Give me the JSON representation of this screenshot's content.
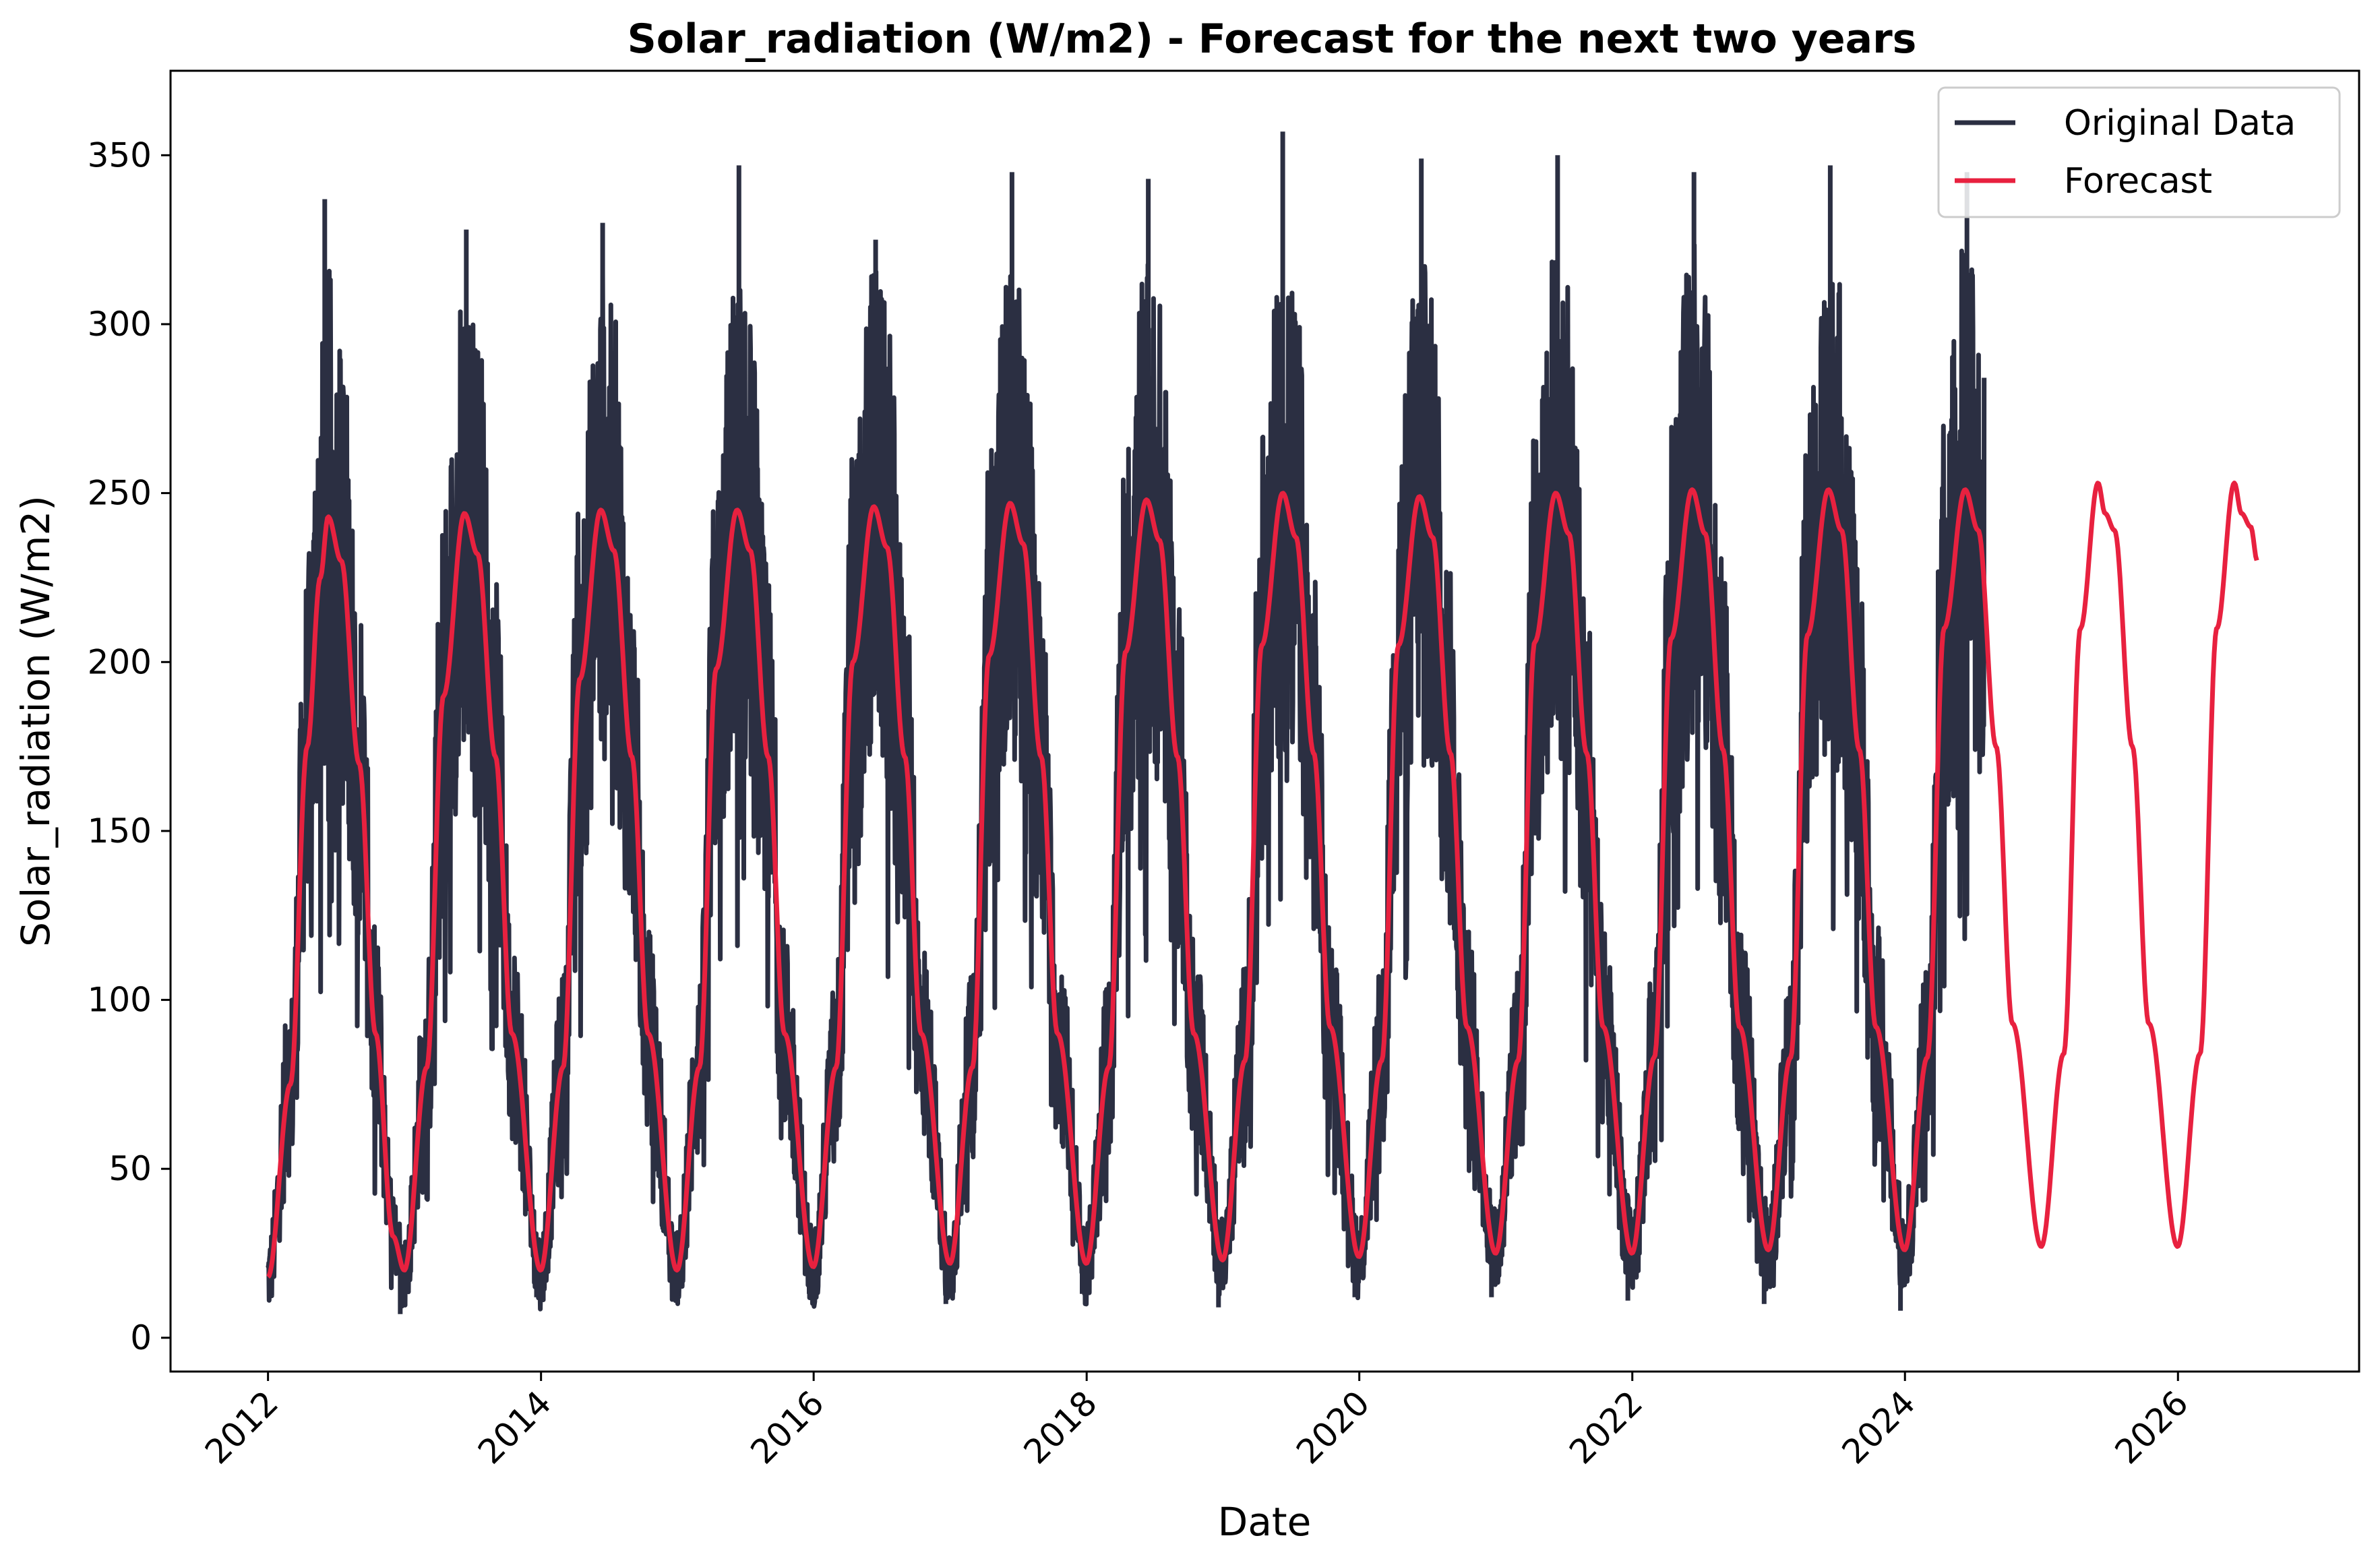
{
  "chart_data": {
    "type": "line",
    "title": "Solar_radiation (W/m2) - Forecast for the next two years",
    "xlabel": "Date",
    "ylabel": "Solar_radiation (W/m2)",
    "xlim": [
      "2011-04-15",
      "2027-05-01"
    ],
    "ylim": [
      -10,
      375
    ],
    "x_ticks": [
      "2012",
      "2014",
      "2016",
      "2018",
      "2020",
      "2022",
      "2024",
      "2026"
    ],
    "y_ticks": [
      "0",
      "50",
      "100",
      "150",
      "200",
      "250",
      "300",
      "350"
    ],
    "legend_position": "top-right",
    "grid": false,
    "series": [
      {
        "name": "Original Data",
        "color": "#2b2f42",
        "style": "noisy daily observations",
        "x_range": [
          "2012-01-01",
          "2024-07-31"
        ],
        "monthly_mean_points": [
          [
            "2012-01-15",
            25
          ],
          [
            "2012-04-15",
            175
          ],
          [
            "2012-06-15",
            240
          ],
          [
            "2012-09-15",
            165
          ],
          [
            "2012-12-15",
            25
          ],
          [
            "2013-06-15",
            240
          ],
          [
            "2013-12-15",
            22
          ],
          [
            "2014-06-15",
            242
          ],
          [
            "2014-12-15",
            22
          ],
          [
            "2015-06-15",
            244
          ],
          [
            "2015-12-15",
            23
          ],
          [
            "2016-06-15",
            245
          ],
          [
            "2016-12-15",
            23
          ],
          [
            "2017-06-15",
            246
          ],
          [
            "2017-12-15",
            24
          ],
          [
            "2018-06-15",
            247
          ],
          [
            "2018-12-15",
            25
          ],
          [
            "2019-06-15",
            249
          ],
          [
            "2019-12-15",
            25
          ],
          [
            "2020-06-15",
            248
          ],
          [
            "2020-12-15",
            26
          ],
          [
            "2021-06-15",
            249
          ],
          [
            "2021-12-15",
            26
          ],
          [
            "2022-06-15",
            250
          ],
          [
            "2022-12-15",
            27
          ],
          [
            "2023-06-15",
            250
          ],
          [
            "2023-12-15",
            27
          ],
          [
            "2024-06-15",
            250
          ]
        ],
        "annual_peaks": [
          [
            "2012-06-01",
            337
          ],
          [
            "2013-06-15",
            328
          ],
          [
            "2014-06-15",
            330
          ],
          [
            "2015-06-15",
            347
          ],
          [
            "2016-06-15",
            325
          ],
          [
            "2017-06-15",
            345
          ],
          [
            "2018-06-15",
            343
          ],
          [
            "2019-06-10",
            357
          ],
          [
            "2020-06-15",
            349
          ],
          [
            "2021-06-15",
            350
          ],
          [
            "2022-06-15",
            345
          ],
          [
            "2023-06-15",
            347
          ],
          [
            "2024-06-15",
            345
          ]
        ],
        "annual_minima": [
          [
            "2012-12-20",
            7
          ],
          [
            "2013-12-20",
            12
          ],
          [
            "2014-12-20",
            12
          ],
          [
            "2015-12-20",
            13
          ],
          [
            "2016-12-20",
            10
          ],
          [
            "2017-12-20",
            13
          ],
          [
            "2018-12-20",
            9
          ],
          [
            "2019-12-20",
            12
          ],
          [
            "2020-12-20",
            12
          ],
          [
            "2021-12-20",
            11
          ],
          [
            "2022-12-20",
            10
          ],
          [
            "2023-12-20",
            8
          ]
        ]
      },
      {
        "name": "Forecast",
        "color": "#e8213f",
        "style": "smooth line",
        "points": [
          [
            "2012-01-01",
            18
          ],
          [
            "2012-03-01",
            75
          ],
          [
            "2012-04-15",
            175
          ],
          [
            "2012-05-20",
            225
          ],
          [
            "2012-06-10",
            243
          ],
          [
            "2012-07-15",
            230
          ],
          [
            "2012-09-01",
            170
          ],
          [
            "2012-10-15",
            90
          ],
          [
            "2012-12-01",
            30
          ],
          [
            "2012-12-31",
            20
          ],
          [
            "2013-03-01",
            80
          ],
          [
            "2013-04-15",
            190
          ],
          [
            "2013-06-10",
            244
          ],
          [
            "2013-07-15",
            232
          ],
          [
            "2013-09-01",
            172
          ],
          [
            "2013-10-15",
            90
          ],
          [
            "2013-12-31",
            20
          ],
          [
            "2014-03-01",
            80
          ],
          [
            "2014-04-15",
            195
          ],
          [
            "2014-06-10",
            245
          ],
          [
            "2014-07-15",
            233
          ],
          [
            "2014-09-01",
            172
          ],
          [
            "2014-10-15",
            90
          ],
          [
            "2014-12-31",
            20
          ],
          [
            "2015-03-01",
            80
          ],
          [
            "2015-04-15",
            198
          ],
          [
            "2015-06-10",
            245
          ],
          [
            "2015-07-15",
            233
          ],
          [
            "2015-09-01",
            172
          ],
          [
            "2015-10-15",
            90
          ],
          [
            "2015-12-31",
            21
          ],
          [
            "2016-03-01",
            80
          ],
          [
            "2016-04-15",
            200
          ],
          [
            "2016-06-10",
            246
          ],
          [
            "2016-07-15",
            234
          ],
          [
            "2016-09-01",
            172
          ],
          [
            "2016-10-15",
            90
          ],
          [
            "2016-12-31",
            22
          ],
          [
            "2017-03-01",
            80
          ],
          [
            "2017-04-15",
            202
          ],
          [
            "2017-06-10",
            247
          ],
          [
            "2017-07-15",
            235
          ],
          [
            "2017-09-01",
            172
          ],
          [
            "2017-10-15",
            90
          ],
          [
            "2017-12-31",
            22
          ],
          [
            "2018-03-01",
            80
          ],
          [
            "2018-04-15",
            203
          ],
          [
            "2018-06-10",
            248
          ],
          [
            "2018-07-15",
            236
          ],
          [
            "2018-09-01",
            172
          ],
          [
            "2018-10-15",
            90
          ],
          [
            "2018-12-31",
            23
          ],
          [
            "2019-03-01",
            82
          ],
          [
            "2019-04-15",
            205
          ],
          [
            "2019-06-10",
            250
          ],
          [
            "2019-07-15",
            237
          ],
          [
            "2019-09-01",
            173
          ],
          [
            "2019-10-15",
            92
          ],
          [
            "2019-12-31",
            24
          ],
          [
            "2020-03-01",
            82
          ],
          [
            "2020-04-15",
            205
          ],
          [
            "2020-06-10",
            249
          ],
          [
            "2020-07-15",
            237
          ],
          [
            "2020-09-01",
            173
          ],
          [
            "2020-10-15",
            92
          ],
          [
            "2020-12-31",
            25
          ],
          [
            "2021-03-01",
            82
          ],
          [
            "2021-04-15",
            206
          ],
          [
            "2021-06-10",
            250
          ],
          [
            "2021-07-15",
            238
          ],
          [
            "2021-09-01",
            173
          ],
          [
            "2021-10-15",
            92
          ],
          [
            "2021-12-31",
            25
          ],
          [
            "2022-03-01",
            83
          ],
          [
            "2022-04-15",
            207
          ],
          [
            "2022-06-10",
            251
          ],
          [
            "2022-07-15",
            238
          ],
          [
            "2022-09-01",
            174
          ],
          [
            "2022-10-15",
            92
          ],
          [
            "2022-12-31",
            26
          ],
          [
            "2023-03-01",
            83
          ],
          [
            "2023-04-15",
            208
          ],
          [
            "2023-06-10",
            251
          ],
          [
            "2023-07-15",
            239
          ],
          [
            "2023-09-01",
            174
          ],
          [
            "2023-10-15",
            92
          ],
          [
            "2023-12-31",
            26
          ],
          [
            "2024-03-01",
            83
          ],
          [
            "2024-04-15",
            210
          ],
          [
            "2024-06-10",
            251
          ],
          [
            "2024-07-15",
            239
          ],
          [
            "2024-09-01",
            175
          ],
          [
            "2024-10-15",
            93
          ],
          [
            "2024-12-31",
            27
          ],
          [
            "2025-03-01",
            84
          ],
          [
            "2025-04-15",
            210
          ],
          [
            "2025-06-01",
            253
          ],
          [
            "2025-06-20",
            244
          ],
          [
            "2025-07-15",
            239
          ],
          [
            "2025-09-01",
            175
          ],
          [
            "2025-10-15",
            93
          ],
          [
            "2025-12-31",
            27
          ],
          [
            "2026-03-01",
            84
          ],
          [
            "2026-04-15",
            210
          ],
          [
            "2026-06-01",
            253
          ],
          [
            "2026-06-20",
            244
          ],
          [
            "2026-07-15",
            240
          ],
          [
            "2026-08-01",
            230
          ]
        ]
      }
    ]
  }
}
